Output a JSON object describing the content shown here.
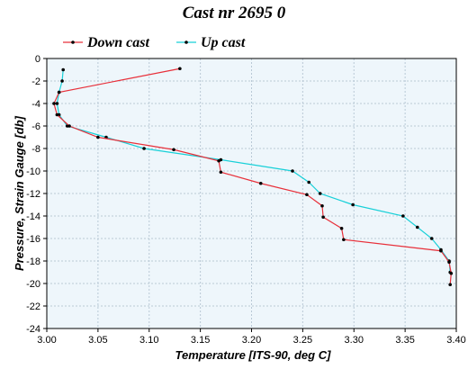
{
  "chart_data": {
    "type": "line",
    "title": "Cast nr 2695 0",
    "xlabel": "Temperature [ITS-90, deg C]",
    "ylabel": "Pressure, Strain Gauge [db]",
    "xlim": [
      3.0,
      3.4
    ],
    "ylim": [
      -24,
      0
    ],
    "xticks": [
      "3.00",
      "3.05",
      "3.10",
      "3.15",
      "3.20",
      "3.25",
      "3.30",
      "3.35",
      "3.40"
    ],
    "yticks": [
      "0",
      "-2",
      "-4",
      "-6",
      "-8",
      "-10",
      "-12",
      "-14",
      "-16",
      "-18",
      "-20",
      "-22",
      "-24"
    ],
    "grid": true,
    "legend_position": "top",
    "series": [
      {
        "name": "Down cast",
        "color": "#e8303a",
        "x": [
          3.13,
          3.012,
          3.007,
          3.01,
          3.022,
          3.05,
          3.124,
          3.168,
          3.17,
          3.209,
          3.254,
          3.269,
          3.27,
          3.288,
          3.29,
          3.385,
          3.393,
          3.395,
          3.394
        ],
        "y": [
          -0.9,
          -3.0,
          -4.0,
          -5.0,
          -6.0,
          -7.0,
          -8.1,
          -9.1,
          -10.1,
          -11.1,
          -12.1,
          -13.1,
          -14.1,
          -15.1,
          -16.1,
          -17.1,
          -18.1,
          -19.1,
          -20.1
        ]
      },
      {
        "name": "Up cast",
        "color": "#18d0d8",
        "x": [
          3.016,
          3.015,
          3.012,
          3.01,
          3.012,
          3.02,
          3.058,
          3.095,
          3.17,
          3.24,
          3.256,
          3.267,
          3.299,
          3.348,
          3.362,
          3.376,
          3.385,
          3.393,
          3.394
        ],
        "y": [
          -1.0,
          -2.0,
          -3.0,
          -4.0,
          -5.0,
          -6.0,
          -7.0,
          -8.0,
          -9.0,
          -10.0,
          -11.0,
          -12.0,
          -13.0,
          -14.0,
          -15.0,
          -16.0,
          -17.0,
          -18.0,
          -19.0
        ]
      }
    ]
  }
}
